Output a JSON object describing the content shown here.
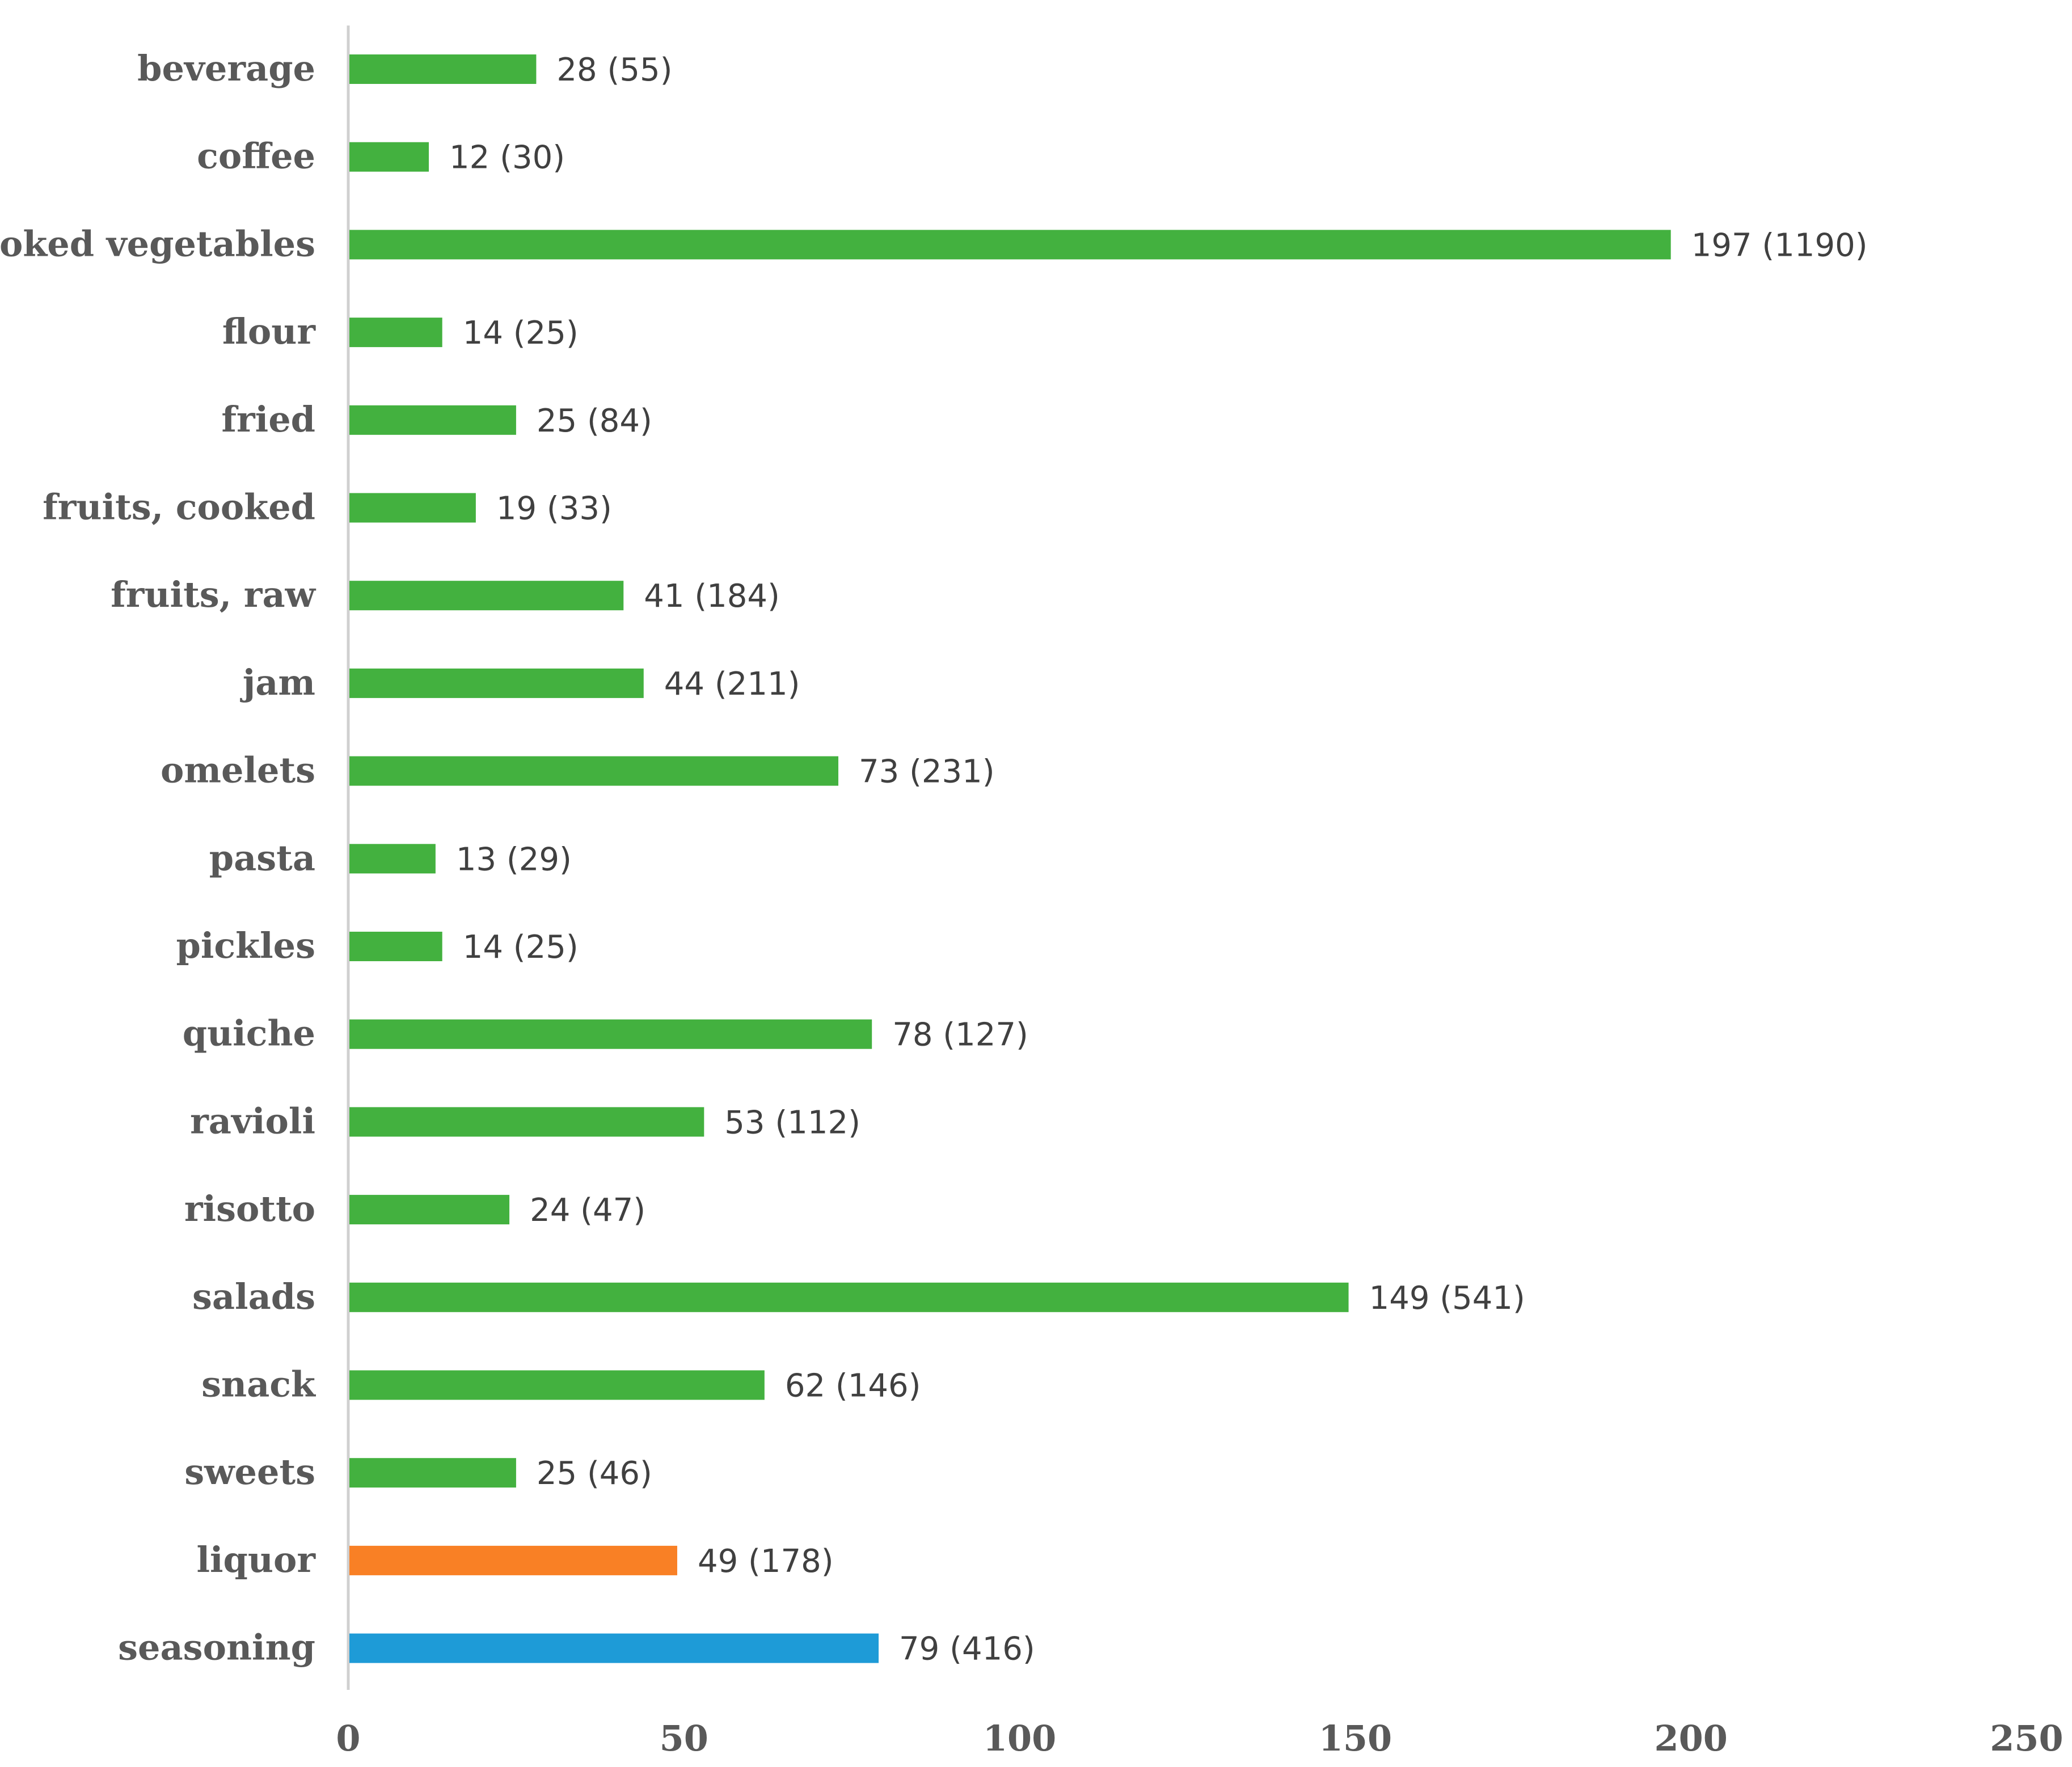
{
  "chart_data": {
    "type": "bar",
    "orientation": "horizontal",
    "title": "",
    "xlabel": "",
    "ylabel": "",
    "xlim": [
      0,
      250
    ],
    "x_ticks": [
      "0",
      "50",
      "100",
      "150",
      "200",
      "250"
    ],
    "grid": false,
    "legend": "none",
    "categories": [
      "beverage",
      "coffee",
      "cooked vegetables",
      "flour",
      "fried",
      "fruits, cooked",
      "fruits, raw",
      "jam",
      "omelets",
      "pasta",
      "pickles",
      "quiche",
      "ravioli",
      "risotto",
      "salads",
      "snack",
      "sweets",
      "liquor",
      "seasoning"
    ],
    "values": [
      28,
      12,
      197,
      14,
      25,
      19,
      41,
      44,
      73,
      13,
      14,
      78,
      53,
      24,
      149,
      62,
      25,
      49,
      79
    ],
    "data_labels": [
      "28 (55)",
      "12 (30)",
      "197 (1190)",
      "14 (25)",
      "25 (84)",
      "19 (33)",
      "41 (184)",
      "44 (211)",
      "73 (231)",
      "13 (29)",
      "14 (25)",
      "78 (127)",
      "53 (112)",
      "24 (47)",
      "149 (541)",
      "62 (146)",
      "25 (46)",
      "49 (178)",
      "79 (416)"
    ],
    "bar_colors": [
      "#43b13f",
      "#43b13f",
      "#43b13f",
      "#43b13f",
      "#43b13f",
      "#43b13f",
      "#43b13f",
      "#43b13f",
      "#43b13f",
      "#43b13f",
      "#43b13f",
      "#43b13f",
      "#43b13f",
      "#43b13f",
      "#43b13f",
      "#43b13f",
      "#43b13f",
      "#f98025",
      "#1e9bd7"
    ],
    "axis_color": "#d0d0d0"
  }
}
